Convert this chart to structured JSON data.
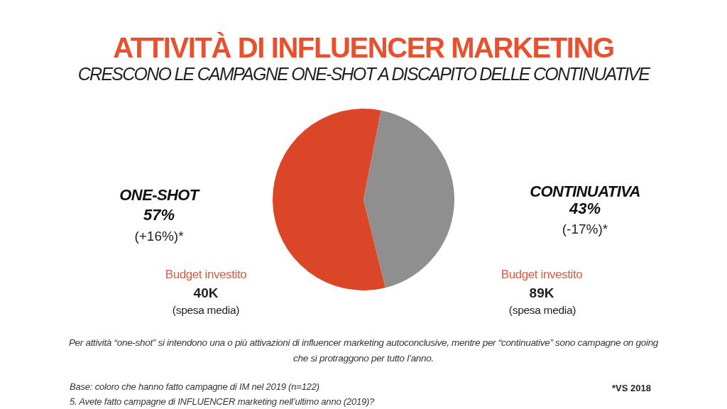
{
  "chart_data": {
    "type": "pie",
    "title": "ATTIVITÀ DI INFLUENCER MARKETING",
    "subtitle": "CRESCONO LE CAMPAGNE ONE-SHOT A DISCAPITO DELLE CONTINUATIVE",
    "categories": [
      "ONE-SHOT",
      "CONTINUATIVA"
    ],
    "values": [
      57,
      43
    ],
    "colors": [
      "#dc4628",
      "#8f8f8f"
    ],
    "value_labels": [
      "57%",
      "43%"
    ],
    "annotations": [
      "(+16%)*",
      "(-17%)*",
      "Budget investito",
      "40K",
      "(spesa media)",
      "Budget investito",
      "89K",
      "(spesa media)",
      "Per attività “one-shot” si intendono una o più attivazioni di influencer marketing autoconclusive, mentre per “continuative” sono campagne on going che si protraggono per tutto l’anno.",
      "Base: coloro che hanno fatto campagne di IM nel 2019 (n=122)",
      "5. Avete fatto campagne di INFLUENCER marketing nell’ultimo anno (2019)?",
      "*VS 2018"
    ]
  }
}
